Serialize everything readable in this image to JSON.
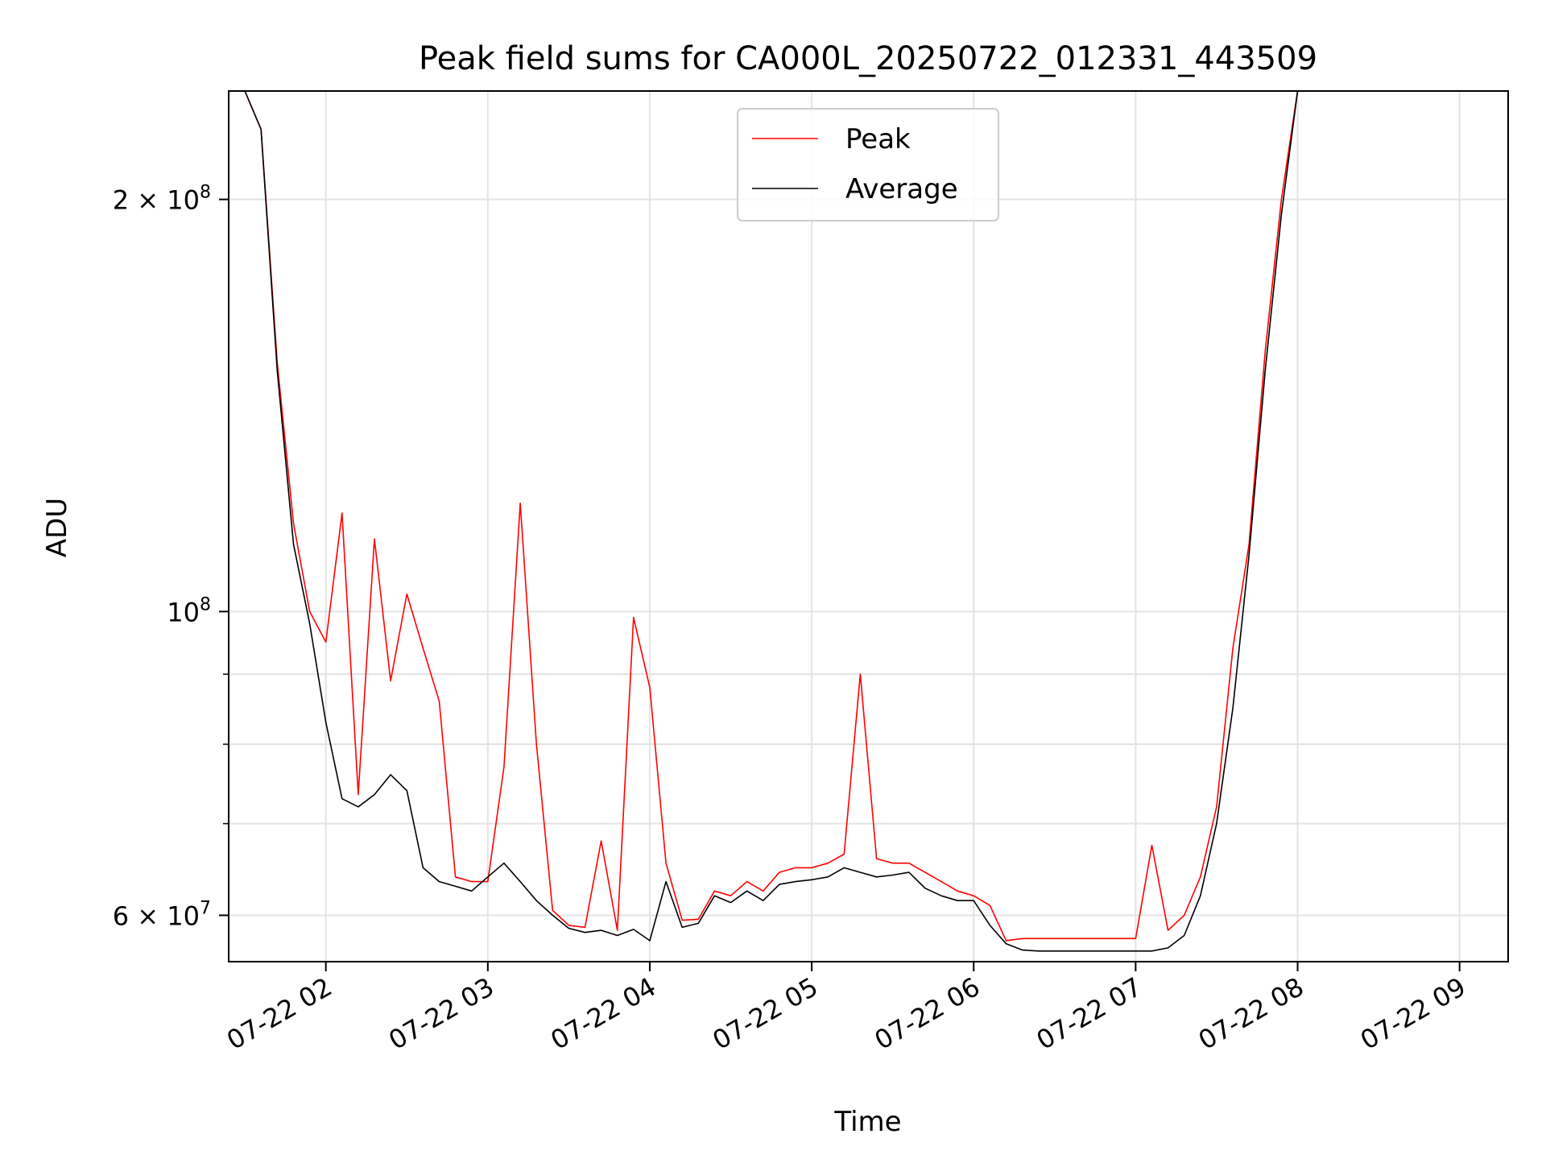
{
  "chart_data": {
    "type": "line",
    "title": "Peak field sums for CA000L_20250722_012331_443509",
    "xlabel": "Time",
    "ylabel": "ADU",
    "y_scale": "log",
    "xlim": [
      "2025-07-22 01:24",
      "2025-07-22 09:18"
    ],
    "ylim": [
      55500000,
      240000000
    ],
    "grid": true,
    "legend": "upper center",
    "x_ticks": [
      {
        "t": "2025-07-22 02:00",
        "label": "07-22 02"
      },
      {
        "t": "2025-07-22 03:00",
        "label": "07-22 03"
      },
      {
        "t": "2025-07-22 04:00",
        "label": "07-22 04"
      },
      {
        "t": "2025-07-22 05:00",
        "label": "07-22 05"
      },
      {
        "t": "2025-07-22 06:00",
        "label": "07-22 06"
      },
      {
        "t": "2025-07-22 07:00",
        "label": "07-22 07"
      },
      {
        "t": "2025-07-22 08:00",
        "label": "07-22 08"
      },
      {
        "t": "2025-07-22 09:00",
        "label": "07-22 09"
      }
    ],
    "y_ticks_major": [
      {
        "value": 60000000,
        "base": "6 × 10",
        "exp": "7"
      },
      {
        "value": 100000000,
        "base": "10",
        "exp": "8"
      },
      {
        "value": 200000000,
        "base": "2 × 10",
        "exp": "8"
      }
    ],
    "y_ticks_minor": [
      70000000,
      80000000,
      90000000
    ],
    "x": [
      "2025-07-22 01:24",
      "2025-07-22 01:30",
      "2025-07-22 01:36",
      "2025-07-22 01:42",
      "2025-07-22 01:48",
      "2025-07-22 01:54",
      "2025-07-22 02:00",
      "2025-07-22 02:06",
      "2025-07-22 02:12",
      "2025-07-22 02:18",
      "2025-07-22 02:24",
      "2025-07-22 02:30",
      "2025-07-22 02:36",
      "2025-07-22 02:42",
      "2025-07-22 02:48",
      "2025-07-22 02:54",
      "2025-07-22 03:00",
      "2025-07-22 03:06",
      "2025-07-22 03:12",
      "2025-07-22 03:18",
      "2025-07-22 03:24",
      "2025-07-22 03:30",
      "2025-07-22 03:36",
      "2025-07-22 03:42",
      "2025-07-22 03:48",
      "2025-07-22 03:54",
      "2025-07-22 04:00",
      "2025-07-22 04:06",
      "2025-07-22 04:12",
      "2025-07-22 04:18",
      "2025-07-22 04:24",
      "2025-07-22 04:30",
      "2025-07-22 04:36",
      "2025-07-22 04:42",
      "2025-07-22 04:48",
      "2025-07-22 04:54",
      "2025-07-22 05:00",
      "2025-07-22 05:06",
      "2025-07-22 05:12",
      "2025-07-22 05:18",
      "2025-07-22 05:24",
      "2025-07-22 05:30",
      "2025-07-22 05:36",
      "2025-07-22 05:42",
      "2025-07-22 05:48",
      "2025-07-22 05:54",
      "2025-07-22 06:00",
      "2025-07-22 06:06",
      "2025-07-22 06:12",
      "2025-07-22 06:18",
      "2025-07-22 06:24",
      "2025-07-22 06:30",
      "2025-07-22 06:36",
      "2025-07-22 06:42",
      "2025-07-22 06:48",
      "2025-07-22 06:54",
      "2025-07-22 07:00",
      "2025-07-22 07:06",
      "2025-07-22 07:12",
      "2025-07-22 07:18",
      "2025-07-22 07:24",
      "2025-07-22 07:30",
      "2025-07-22 07:36",
      "2025-07-22 07:42",
      "2025-07-22 07:48",
      "2025-07-22 07:54",
      "2025-07-22 08:00",
      "2025-07-22 08:06",
      "2025-07-22 08:12",
      "2025-07-22 08:18",
      "2025-07-22 08:24",
      "2025-07-22 08:30",
      "2025-07-22 08:36",
      "2025-07-22 08:42",
      "2025-07-22 08:48",
      "2025-07-22 08:54",
      "2025-07-22 09:00",
      "2025-07-22 09:06",
      "2025-07-22 09:12",
      "2025-07-22 09:18"
    ],
    "series": [
      {
        "name": "Average",
        "color": "#000000",
        "values": [
          240000000,
          240000000,
          225000000,
          150000000,
          112000000,
          98000000,
          83000000,
          73000000,
          72000000,
          73500000,
          76000000,
          74000000,
          65000000,
          63500000,
          63000000,
          62500000,
          64000000,
          65500000,
          63500000,
          61500000,
          60000000,
          58700000,
          58300000,
          58500000,
          58000000,
          58600000,
          57500000,
          63500000,
          58800000,
          59200000,
          62000000,
          61300000,
          62500000,
          61500000,
          63200000,
          63500000,
          63700000,
          64000000,
          65000000,
          64500000,
          64000000,
          64200000,
          64500000,
          62800000,
          62000000,
          61500000,
          61500000,
          59000000,
          57200000,
          56600000,
          56500000,
          56500000,
          56500000,
          56500000,
          56500000,
          56500000,
          56500000,
          56500000,
          56800000,
          58000000,
          62000000,
          70000000,
          85000000,
          110000000,
          150000000,
          195000000,
          240000000,
          240000000,
          240000000,
          240000000,
          240000000,
          240000000,
          240000000,
          240000000,
          240000000,
          240000000,
          240000000,
          240000000,
          240000000,
          240000000
        ]
      },
      {
        "name": "Peak",
        "color": "#ff0000",
        "values": [
          240000000,
          240000000,
          225000000,
          152000000,
          116000000,
          100000000,
          95000000,
          118000000,
          73500000,
          113000000,
          89000000,
          103000000,
          94000000,
          86000000,
          64000000,
          63500000,
          63500000,
          77000000,
          120000000,
          80000000,
          60500000,
          59000000,
          58800000,
          68000000,
          58500000,
          99000000,
          88000000,
          65500000,
          59500000,
          59600000,
          62500000,
          62000000,
          63500000,
          62500000,
          64500000,
          65000000,
          65000000,
          65500000,
          66500000,
          90000000,
          66000000,
          65500000,
          65500000,
          64500000,
          63500000,
          62500000,
          62000000,
          61000000,
          57500000,
          57700000,
          57700000,
          57700000,
          57700000,
          57700000,
          57700000,
          57700000,
          57700000,
          67500000,
          58500000,
          60000000,
          64000000,
          72000000,
          94000000,
          112000000,
          155000000,
          200000000,
          240000000,
          240000000,
          240000000,
          240000000,
          240000000,
          240000000,
          240000000,
          240000000,
          240000000,
          240000000,
          240000000,
          240000000,
          240000000,
          240000000
        ]
      }
    ]
  }
}
